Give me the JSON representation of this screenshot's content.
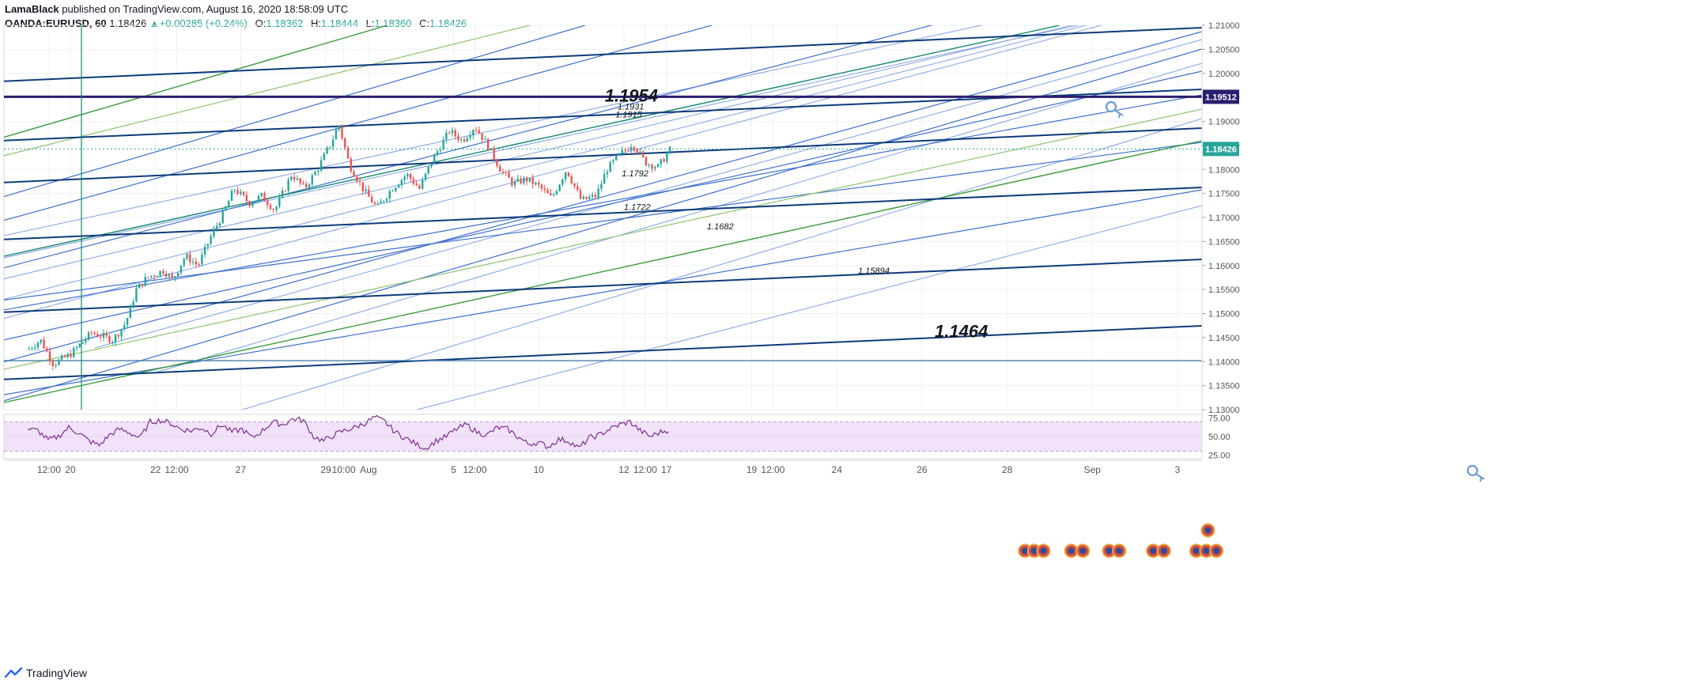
{
  "header": {
    "user": "LamaBlack",
    "published_text": "published on TradingView.com, August 16, 2020 18:58:09 UTC",
    "symbol": "OANDA:EURUSD, 60",
    "last": "1.18426",
    "change": "+0.00285 (+0.24%)",
    "o_label": "O:",
    "o_value": "1.18362",
    "h_label": "H:",
    "h_value": "1.18444",
    "l_label": "L:",
    "l_value": "1.18360",
    "c_label": "C:",
    "c_value": "1.18426"
  },
  "footer": {
    "brand": "TradingView"
  },
  "colors": {
    "grid": "#eef0f3",
    "dark_blue": "#0d3b7a",
    "mid_blue": "#3f6fce",
    "light_blue": "#7ea1e3",
    "green": "#3a9a3a",
    "light_green": "#8cc46e",
    "teal": "#12876e",
    "candle_up": "#26a69a",
    "candle_down": "#ef5350",
    "rsi": "#7e2f8e",
    "rsi_band": "#f1e2fa",
    "label_bg": "#2a1f6e",
    "current_bg": "#26a69a"
  },
  "chart_data": {
    "type": "candlestick",
    "symbol": "OANDA:EURUSD",
    "interval": "60",
    "ylim": [
      1.13,
      1.21
    ],
    "y_ticks": [
      "1.21000",
      "1.20500",
      "1.20000",
      "1.19500",
      "1.19000",
      "1.18500",
      "1.18000",
      "1.17500",
      "1.17000",
      "1.16500",
      "1.16000",
      "1.15500",
      "1.15000",
      "1.14500",
      "1.14000",
      "1.13500",
      "1.13000"
    ],
    "x_ticks": [
      {
        "label": "12:00",
        "day": 0.5
      },
      {
        "label": "20",
        "day": 1
      },
      {
        "label": "22",
        "day": 3
      },
      {
        "label": "12:00",
        "day": 3.5
      },
      {
        "label": "27",
        "day": 5
      },
      {
        "label": "29",
        "day": 7
      },
      {
        "label": "10:00",
        "day": 7.42
      },
      {
        "label": "Aug",
        "day": 8
      },
      {
        "label": "5",
        "day": 10
      },
      {
        "label": "12:00",
        "day": 10.5
      },
      {
        "label": "10",
        "day": 12
      },
      {
        "label": "12",
        "day": 14
      },
      {
        "label": "12:00",
        "day": 14.5
      },
      {
        "label": "17",
        "day": 15
      },
      {
        "label": "19",
        "day": 17
      },
      {
        "label": "12:00",
        "day": 17.5
      },
      {
        "label": "24",
        "day": 19
      },
      {
        "label": "26",
        "day": 21
      },
      {
        "label": "28",
        "day": 23
      },
      {
        "label": "Sep",
        "day": 25
      },
      {
        "label": "3",
        "day": 27
      }
    ],
    "price_path": [
      [
        0,
        1.1425
      ],
      [
        0.3,
        1.1445
      ],
      [
        0.6,
        1.1395
      ],
      [
        1.0,
        1.1415
      ],
      [
        1.5,
        1.146
      ],
      [
        2.0,
        1.1445
      ],
      [
        2.3,
        1.148
      ],
      [
        2.55,
        1.155
      ],
      [
        2.8,
        1.1575
      ],
      [
        3.2,
        1.159
      ],
      [
        3.4,
        1.157
      ],
      [
        3.7,
        1.162
      ],
      [
        4.0,
        1.16
      ],
      [
        4.3,
        1.166
      ],
      [
        4.6,
        1.171
      ],
      [
        4.85,
        1.176
      ],
      [
        5.2,
        1.173
      ],
      [
        5.5,
        1.1745
      ],
      [
        5.8,
        1.1715
      ],
      [
        6.2,
        1.179
      ],
      [
        6.5,
        1.176
      ],
      [
        6.8,
        1.18
      ],
      [
        7.15,
        1.186
      ],
      [
        7.3,
        1.1895
      ],
      [
        7.55,
        1.181
      ],
      [
        7.9,
        1.1755
      ],
      [
        8.2,
        1.172
      ],
      [
        8.55,
        1.176
      ],
      [
        8.9,
        1.179
      ],
      [
        9.2,
        1.176
      ],
      [
        9.5,
        1.182
      ],
      [
        9.9,
        1.188
      ],
      [
        10.2,
        1.186
      ],
      [
        10.5,
        1.189
      ],
      [
        10.8,
        1.185
      ],
      [
        11.1,
        1.18
      ],
      [
        11.4,
        1.177
      ],
      [
        11.7,
        1.178
      ],
      [
        12.0,
        1.1765
      ],
      [
        12.3,
        1.174
      ],
      [
        12.65,
        1.18
      ],
      [
        13.0,
        1.1735
      ],
      [
        13.35,
        1.1745
      ],
      [
        13.6,
        1.18
      ],
      [
        13.9,
        1.183
      ],
      [
        14.2,
        1.1855
      ],
      [
        14.5,
        1.1815
      ],
      [
        14.8,
        1.1805
      ],
      [
        15.1,
        1.1843
      ]
    ],
    "rsi": {
      "ylim": [
        20,
        80
      ],
      "y_ticks": [
        "75.00",
        "50.00",
        "25.00"
      ],
      "band": [
        30,
        70
      ],
      "values": [
        60,
        58,
        45,
        50,
        62,
        55,
        44,
        38,
        52,
        60,
        55,
        48,
        70,
        72,
        68,
        60,
        58,
        62,
        54,
        66,
        56,
        60,
        48,
        58,
        70,
        66,
        74,
        72,
        50,
        44,
        52,
        58,
        62,
        68,
        76,
        70,
        56,
        48,
        40,
        34,
        44,
        50,
        60,
        66,
        56,
        52,
        62,
        60,
        50,
        40,
        42,
        36,
        46,
        44,
        34,
        48,
        52,
        60,
        66,
        70,
        58,
        50,
        56,
        60
      ]
    },
    "annotations": [
      {
        "text": "1.1954",
        "price": 1.1954,
        "day": 13.55,
        "size": "large"
      },
      {
        "text": "1.1931",
        "price": 1.1931,
        "day": 13.85
      },
      {
        "text": "1.1915",
        "price": 1.1915,
        "day": 13.8
      },
      {
        "text": "1.1792",
        "price": 1.1792,
        "day": 13.95
      },
      {
        "text": "1.1722",
        "price": 1.1722,
        "day": 14.0
      },
      {
        "text": "1.1682",
        "price": 1.1682,
        "day": 15.95
      },
      {
        "text": "1.15894",
        "price": 1.15894,
        "day": 19.5
      },
      {
        "text": "1.1464",
        "price": 1.1464,
        "day": 21.3,
        "size": "large"
      }
    ],
    "price_labels": [
      {
        "text": "1.19512",
        "price": 1.19512,
        "kind": "level"
      },
      {
        "text": "1.18426",
        "price": 1.18426,
        "kind": "current"
      }
    ]
  }
}
